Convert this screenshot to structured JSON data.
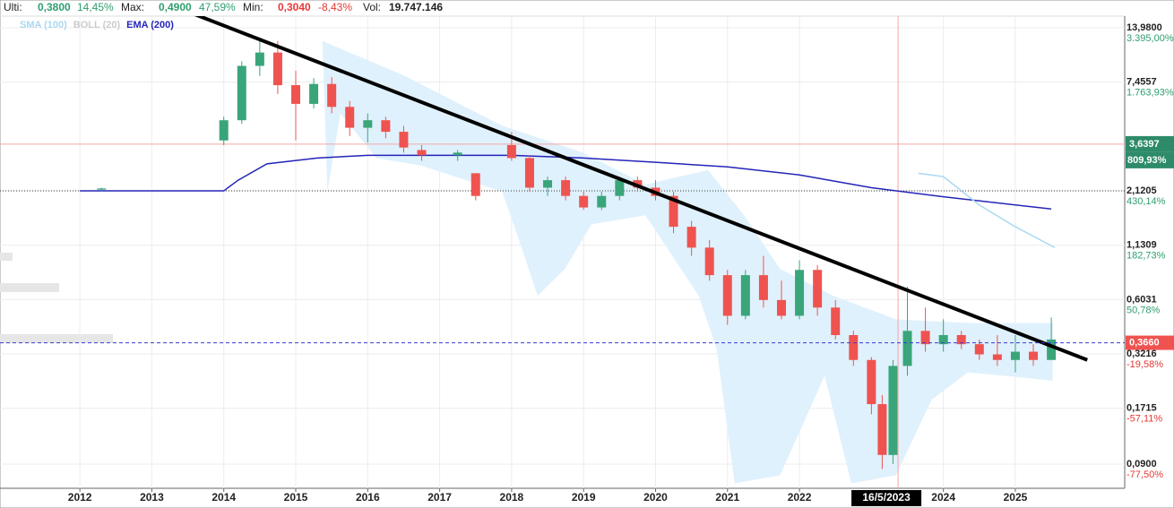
{
  "header": {
    "last_label": "Ulti:",
    "last": "0,3800",
    "last_pct": "14,45%",
    "max_label": "Max:",
    "max": "0,4900",
    "max_pct": "47,59%",
    "min_label": "Min:",
    "min": "0,3040",
    "min_pct": "-8,43%",
    "vol_label": "Vol:",
    "vol": "19.747.146"
  },
  "chart_data": {
    "type": "candlestick",
    "log_y": true,
    "grid": true,
    "up_color": "#3aa57a",
    "down_color": "#ef5350",
    "legend": [
      {
        "name": "SMA (100)",
        "color": "#a9d9f2"
      },
      {
        "name": "BOLL (20)",
        "color": "#cccccc"
      },
      {
        "name": "EMA (200)",
        "color": "#2424b8"
      }
    ],
    "xlim": [
      2010.89,
      2026.52
    ],
    "ylim": [
      0.068,
      16
    ],
    "xticks": [
      2012,
      2013,
      2014,
      2015,
      2016,
      2017,
      2018,
      2019,
      2020,
      2021,
      2022,
      2024,
      2025
    ],
    "yticks": [
      {
        "value": 13.98,
        "label": "13,9800"
      },
      {
        "value": 7.4557,
        "label": "7,4557"
      },
      {
        "value": 2.1205,
        "label": "2,1205"
      },
      {
        "value": 1.1309,
        "label": "1,1309"
      },
      {
        "value": 0.6031,
        "label": "0,6031"
      },
      {
        "value": 0.3216,
        "label": "0,3216"
      },
      {
        "value": 0.1715,
        "label": "0,1715"
      },
      {
        "value": 0.09,
        "label": "0,0900"
      }
    ],
    "pct_ticks": [
      {
        "value": 13.98,
        "label": "3.395,00%"
      },
      {
        "value": 7.4557,
        "label": "1.763,93%"
      },
      {
        "value": 2.1205,
        "label": "430,14%"
      },
      {
        "value": 1.1309,
        "label": "182,73%"
      },
      {
        "value": 0.6031,
        "label": "50,78%"
      },
      {
        "value": 0.3216,
        "label": "-19,58%"
      },
      {
        "value": 0.1715,
        "label": "-57,11%"
      },
      {
        "value": 0.09,
        "label": "-77,50%"
      }
    ],
    "candles": {
      "x": [
        2012.3,
        2014.0,
        2014.25,
        2014.5,
        2014.75,
        2015.0,
        2015.25,
        2015.5,
        2015.75,
        2016.0,
        2016.25,
        2016.5,
        2016.75,
        2017.25,
        2017.5,
        2018.0,
        2018.25,
        2018.5,
        2018.75,
        2019.0,
        2019.25,
        2019.5,
        2019.75,
        2020.0,
        2020.25,
        2020.5,
        2020.75,
        2021.0,
        2021.25,
        2021.5,
        2021.75,
        2022.0,
        2022.25,
        2022.5,
        2022.75,
        2023.0,
        2023.15,
        2023.3,
        2023.5,
        2023.75,
        2024.0,
        2024.25,
        2024.5,
        2024.75,
        2025.0,
        2025.25,
        2025.5
      ],
      "open": [
        2.15,
        3.8,
        4.8,
        9.0,
        10.5,
        7.2,
        5.8,
        7.3,
        5.6,
        4.4,
        4.8,
        4.2,
        3.4,
        3.2,
        2.6,
        3.6,
        3.1,
        2.2,
        2.4,
        2.0,
        1.75,
        2.0,
        2.4,
        2.2,
        2.0,
        1.4,
        1.1,
        0.8,
        0.5,
        0.8,
        0.6,
        0.5,
        0.85,
        0.55,
        0.4,
        0.3,
        0.18,
        0.1,
        0.28,
        0.42,
        0.36,
        0.4,
        0.36,
        0.32,
        0.3,
        0.33,
        0.3
      ],
      "high": [
        2.2,
        5.0,
        9.5,
        12.5,
        12.0,
        8.5,
        7.8,
        7.9,
        6.0,
        5.2,
        5.0,
        4.5,
        3.6,
        3.4,
        2.6,
        4.2,
        3.2,
        2.5,
        2.5,
        2.1,
        2.1,
        2.5,
        2.5,
        2.4,
        2.1,
        1.5,
        1.2,
        0.85,
        0.85,
        1.0,
        0.75,
        0.95,
        0.9,
        0.6,
        0.42,
        0.31,
        0.2,
        0.3,
        0.7,
        0.55,
        0.48,
        0.42,
        0.38,
        0.4,
        0.4,
        0.36,
        0.49
      ],
      "low": [
        2.1,
        3.6,
        4.6,
        8.0,
        6.5,
        3.8,
        5.5,
        5.2,
        4.0,
        3.7,
        3.9,
        3.3,
        3.0,
        3.0,
        1.9,
        3.0,
        2.1,
        2.0,
        1.9,
        1.7,
        1.7,
        1.9,
        2.1,
        1.9,
        1.3,
        1.0,
        0.75,
        0.45,
        0.48,
        0.55,
        0.48,
        0.48,
        0.5,
        0.38,
        0.28,
        0.16,
        0.085,
        0.09,
        0.25,
        0.33,
        0.33,
        0.34,
        0.3,
        0.28,
        0.26,
        0.28,
        0.3
      ],
      "close": [
        2.18,
        4.8,
        9.0,
        10.5,
        7.2,
        5.8,
        7.3,
        5.6,
        4.4,
        4.8,
        4.2,
        3.5,
        3.2,
        3.3,
        2.0,
        3.1,
        2.2,
        2.4,
        2.0,
        1.75,
        2.0,
        2.4,
        2.2,
        2.0,
        1.4,
        1.1,
        0.8,
        0.5,
        0.8,
        0.6,
        0.5,
        0.85,
        0.55,
        0.4,
        0.3,
        0.18,
        0.1,
        0.28,
        0.42,
        0.36,
        0.4,
        0.36,
        0.32,
        0.3,
        0.33,
        0.3,
        0.38
      ]
    },
    "ema": {
      "x": [
        2012.0,
        2014.0,
        2014.2,
        2014.6,
        2015.3,
        2016.0,
        2018.0,
        2019.0,
        2020.0,
        2021.0,
        2022.0,
        2023.0,
        2024.0,
        2025.5
      ],
      "values": [
        2.12,
        2.12,
        2.4,
        2.9,
        3.1,
        3.2,
        3.2,
        3.1,
        2.95,
        2.8,
        2.55,
        2.2,
        1.98,
        1.72
      ]
    },
    "sma": {
      "x": [
        2023.65,
        2024.0,
        2024.5,
        2025.0,
        2025.55
      ],
      "values": [
        2.6,
        2.5,
        1.8,
        1.4,
        1.1
      ]
    },
    "boll": {
      "x_upper": [
        2015.37,
        2016.49,
        2017.87,
        2018.99,
        2019.86,
        2020.73,
        2021.23,
        2021.73,
        2022.47,
        2023.34,
        2024.34,
        2025.52
      ],
      "upper": [
        12,
        8.1,
        4.5,
        3.3,
        2.28,
        2.7,
        1.6,
        0.86,
        0.63,
        0.48,
        0.46,
        0.46
      ],
      "x_lower": [
        2025.52,
        2024.84,
        2024.34,
        2023.84,
        2023.34,
        2022.72,
        2022.35,
        2021.73,
        2021.1,
        2020.85,
        2020.6,
        2019.86,
        2019.11,
        2018.74,
        2018.36,
        2018.11,
        2017.87,
        2016.74,
        2016.12,
        2015.62,
        2015.44
      ],
      "lower": [
        0.236,
        0.25,
        0.26,
        0.19,
        0.079,
        0.072,
        0.25,
        0.079,
        0.072,
        0.34,
        0.63,
        1.6,
        1.44,
        0.86,
        0.63,
        1.18,
        2.1,
        2.84,
        3.1,
        5.2,
        2.1
      ]
    },
    "trendline": {
      "x": [
        2013.4,
        2026.0
      ],
      "values": [
        17.4,
        0.3
      ]
    },
    "ref_level": 2.12,
    "crosshair": {
      "x": 2023.37,
      "x_label": "16/5/2023",
      "y": 3.6397,
      "y_label": "3,6397",
      "pct_label": "809,93%"
    },
    "last_price": {
      "value": 0.366,
      "label": "0,3660"
    }
  }
}
